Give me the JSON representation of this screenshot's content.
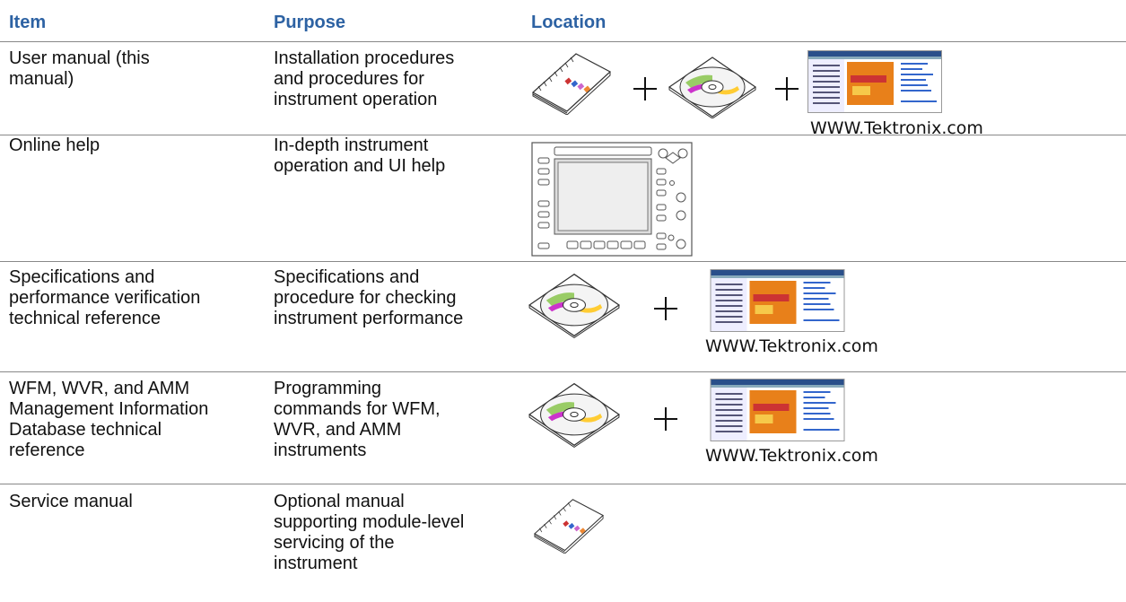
{
  "header": {
    "item": "Item",
    "purpose": "Purpose",
    "location": "Location"
  },
  "rows": [
    {
      "item": [
        "User manual (this",
        "manual)"
      ],
      "purpose": [
        "Installation procedures",
        "and procedures for",
        "instrument operation"
      ],
      "location_caption": "WWW.Tektronix.com"
    },
    {
      "item": [
        "Online help"
      ],
      "purpose": [
        "In-depth instrument",
        "operation and UI help"
      ]
    },
    {
      "item": [
        "Specifications and",
        "performance verification",
        "technical reference"
      ],
      "purpose": [
        "Specifications and",
        "procedure for checking",
        "instrument performance"
      ],
      "location_caption": "WWW.Tektronix.com"
    },
    {
      "item": [
        "WFM, WVR, and AMM",
        "Management Information",
        "Database technical",
        "reference"
      ],
      "purpose": [
        "Programming",
        "commands for WFM,",
        "WVR, and AMM",
        "instruments"
      ],
      "location_caption": "WWW.Tektronix.com"
    },
    {
      "item": [
        "Service manual"
      ],
      "purpose": [
        "Optional manual",
        "supporting module-level",
        "servicing of the",
        "instrument"
      ]
    }
  ]
}
